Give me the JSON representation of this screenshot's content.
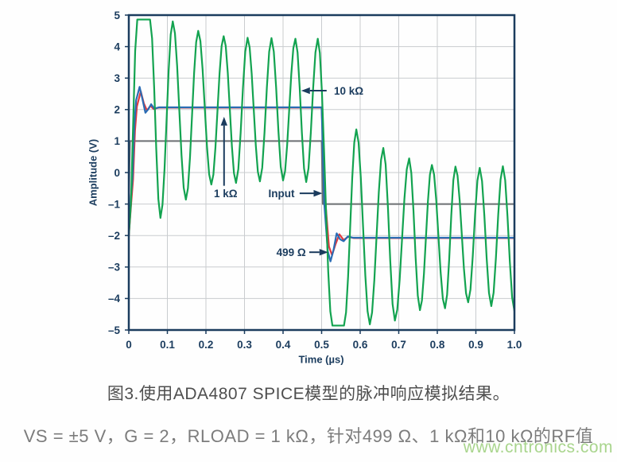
{
  "figure": {
    "caption": "图3.使用ADA4807 SPICE模型的脉冲响应模拟结果。",
    "params_line": "VS = ±5 V，G = 2，RLOAD = 1 kΩ，针对499 Ω、1 kΩ和10 kΩ的RF值"
  },
  "watermark": "www.cntronics.com",
  "colors": {
    "axis": "#1b3c5e",
    "grid": "#c9cccf",
    "green": "#13a350",
    "blue": "#2a6cb4",
    "red": "#e03a3e",
    "input_gray": "#6b6f72",
    "caption": "#4e4e4e",
    "params": "#7c7c7c",
    "watermark_green": "#94cb70"
  },
  "chart_data": {
    "type": "line",
    "title": "",
    "xlabel": "Time (µs)",
    "ylabel": "Amplitude (V)",
    "xlim": [
      0,
      1.0
    ],
    "ylim": [
      -5,
      5
    ],
    "grid": true,
    "legend_position": "inline-annotations",
    "x_ticks": [
      {
        "v": 0.0,
        "label": "0"
      },
      {
        "v": 0.1,
        "label": "0.1"
      },
      {
        "v": 0.2,
        "label": "0.2"
      },
      {
        "v": 0.3,
        "label": "0.3"
      },
      {
        "v": 0.4,
        "label": "0.4"
      },
      {
        "v": 0.5,
        "label": "0.5"
      },
      {
        "v": 0.6,
        "label": "0.6"
      },
      {
        "v": 0.7,
        "label": "0.7"
      },
      {
        "v": 0.8,
        "label": "0.8"
      },
      {
        "v": 0.9,
        "label": "0.9"
      },
      {
        "v": 1.0,
        "label": "1.0"
      }
    ],
    "y_ticks": [
      {
        "v": 5,
        "label": "5"
      },
      {
        "v": 4,
        "label": "4"
      },
      {
        "v": 3,
        "label": "3"
      },
      {
        "v": 2,
        "label": "2"
      },
      {
        "v": 1,
        "label": "1"
      },
      {
        "v": 0,
        "label": "0"
      },
      {
        "v": -1,
        "label": "–1"
      },
      {
        "v": -2,
        "label": "–2"
      },
      {
        "v": -3,
        "label": "–3"
      },
      {
        "v": -4,
        "label": "–4"
      },
      {
        "v": -5,
        "label": "–5"
      }
    ],
    "series": [
      {
        "name": "Input",
        "color_key": "input_gray",
        "width": 2,
        "interp": "linear",
        "points": [
          [
            0,
            -1
          ],
          [
            0.003,
            1
          ],
          [
            0.5,
            1
          ],
          [
            0.503,
            -1
          ],
          [
            1.0,
            -1
          ]
        ]
      },
      {
        "name": "1 kΩ",
        "color_key": "red",
        "width": 2.2,
        "interp": "cosine",
        "points": [
          [
            0,
            -2
          ],
          [
            0.006,
            -1.0
          ],
          [
            0.021,
            2.1
          ],
          [
            0.031,
            2.58
          ],
          [
            0.039,
            2.2
          ],
          [
            0.047,
            1.97
          ],
          [
            0.056,
            2.12
          ],
          [
            0.064,
            2.02
          ],
          [
            0.078,
            2.06
          ],
          [
            0.5,
            2.06
          ],
          [
            0.509,
            -0.8
          ],
          [
            0.519,
            -2.35
          ],
          [
            0.527,
            -2.62
          ],
          [
            0.536,
            -2.28
          ],
          [
            0.546,
            -1.96
          ],
          [
            0.557,
            -2.14
          ],
          [
            0.569,
            -2.04
          ],
          [
            0.584,
            -2.08
          ],
          [
            1.0,
            -2.08
          ]
        ]
      },
      {
        "name": "499 Ω",
        "color_key": "blue",
        "width": 2.2,
        "interp": "cosine",
        "points": [
          [
            0,
            -1.9
          ],
          [
            0.005,
            -0.9
          ],
          [
            0.019,
            2.3
          ],
          [
            0.028,
            2.72
          ],
          [
            0.035,
            2.35
          ],
          [
            0.043,
            1.9
          ],
          [
            0.051,
            2.02
          ],
          [
            0.058,
            2.17
          ],
          [
            0.066,
            2.03
          ],
          [
            0.078,
            2.07
          ],
          [
            0.5,
            2.07
          ],
          [
            0.507,
            -1.0
          ],
          [
            0.516,
            -2.5
          ],
          [
            0.523,
            -2.82
          ],
          [
            0.531,
            -2.45
          ],
          [
            0.539,
            -1.93
          ],
          [
            0.548,
            -2.12
          ],
          [
            0.557,
            -2.18
          ],
          [
            0.568,
            -2.03
          ],
          [
            0.582,
            -2.07
          ],
          [
            1.0,
            -2.07
          ]
        ]
      },
      {
        "name": "10 kΩ",
        "color_key": "green",
        "width": 2.2,
        "interp": "cosine",
        "points": [
          [
            0,
            -2
          ],
          [
            0.022,
            4.86
          ],
          [
            0.055,
            4.86
          ],
          [
            0.082,
            -1.44
          ],
          [
            0.114,
            4.8
          ],
          [
            0.148,
            -0.86
          ],
          [
            0.18,
            4.5
          ],
          [
            0.214,
            -0.38
          ],
          [
            0.246,
            4.33
          ],
          [
            0.278,
            -0.33
          ],
          [
            0.308,
            4.28
          ],
          [
            0.34,
            -0.28
          ],
          [
            0.37,
            4.27
          ],
          [
            0.4,
            -0.25
          ],
          [
            0.432,
            4.25
          ],
          [
            0.46,
            -0.3
          ],
          [
            0.49,
            4.25
          ],
          [
            0.528,
            -4.86
          ],
          [
            0.558,
            -4.86
          ],
          [
            0.59,
            1.37
          ],
          [
            0.625,
            -4.82
          ],
          [
            0.66,
            0.78
          ],
          [
            0.69,
            -4.7
          ],
          [
            0.727,
            0.45
          ],
          [
            0.755,
            -4.37
          ],
          [
            0.786,
            0.24
          ],
          [
            0.82,
            -4.31
          ],
          [
            0.847,
            0.19
          ],
          [
            0.88,
            -4.12
          ],
          [
            0.91,
            0.15
          ],
          [
            0.94,
            -4.24
          ],
          [
            0.97,
            0.2
          ],
          [
            1.0,
            -4.4
          ]
        ]
      }
    ],
    "annotations": [
      {
        "id": "anno-10k",
        "label": "10 kΩ",
        "text_anchor": "start",
        "text_pos": [
          0.532,
          2.6
        ],
        "arrow_from": [
          0.513,
          2.6
        ],
        "arrow_to": [
          0.447,
          2.6
        ]
      },
      {
        "id": "anno-1k",
        "label": "1 kΩ",
        "text_anchor": "middle",
        "text_pos": [
          0.251,
          -0.66
        ],
        "arrow_from": [
          0.247,
          -0.42
        ],
        "arrow_to": [
          0.247,
          1.77
        ]
      },
      {
        "id": "anno-input",
        "label": "Input",
        "text_anchor": "middle",
        "text_pos": [
          0.396,
          -0.66
        ],
        "arrow_from": [
          0.443,
          -0.66
        ],
        "arrow_to": [
          0.502,
          -0.66
        ]
      },
      {
        "id": "anno-499",
        "label": "499 Ω",
        "text_anchor": "middle",
        "text_pos": [
          0.421,
          -2.53
        ],
        "arrow_from": [
          0.468,
          -2.53
        ],
        "arrow_to": [
          0.517,
          -2.53
        ]
      }
    ]
  }
}
